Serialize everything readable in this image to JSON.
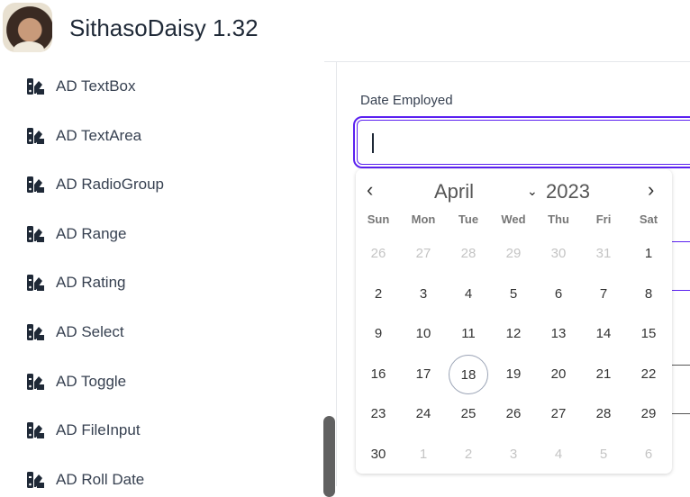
{
  "app": {
    "title": "SithasoDaisy 1.32"
  },
  "sidebar": {
    "items": [
      {
        "label": "AD TextBox"
      },
      {
        "label": "AD TextArea"
      },
      {
        "label": "AD RadioGroup"
      },
      {
        "label": "AD Range"
      },
      {
        "label": "AD Rating"
      },
      {
        "label": "AD Select"
      },
      {
        "label": "AD Toggle"
      },
      {
        "label": "AD FileInput"
      },
      {
        "label": "AD Roll Date"
      }
    ]
  },
  "form": {
    "date_label": "Date Employed",
    "date_value": ""
  },
  "colors": {
    "accent": "#5b21f0"
  },
  "calendar": {
    "month": "April",
    "year": "2023",
    "prev_icon": "chevron-left-icon",
    "next_icon": "chevron-right-icon",
    "today": "18",
    "day_names": [
      "Sun",
      "Mon",
      "Tue",
      "Wed",
      "Thu",
      "Fri",
      "Sat"
    ],
    "weeks": [
      [
        {
          "d": "26",
          "o": true
        },
        {
          "d": "27",
          "o": true
        },
        {
          "d": "28",
          "o": true
        },
        {
          "d": "29",
          "o": true
        },
        {
          "d": "30",
          "o": true
        },
        {
          "d": "31",
          "o": true
        },
        {
          "d": "1"
        }
      ],
      [
        {
          "d": "2"
        },
        {
          "d": "3"
        },
        {
          "d": "4"
        },
        {
          "d": "5"
        },
        {
          "d": "6"
        },
        {
          "d": "7"
        },
        {
          "d": "8"
        }
      ],
      [
        {
          "d": "9"
        },
        {
          "d": "10"
        },
        {
          "d": "11"
        },
        {
          "d": "12"
        },
        {
          "d": "13"
        },
        {
          "d": "14"
        },
        {
          "d": "15"
        }
      ],
      [
        {
          "d": "16"
        },
        {
          "d": "17"
        },
        {
          "d": "18"
        },
        {
          "d": "19"
        },
        {
          "d": "20"
        },
        {
          "d": "21"
        },
        {
          "d": "22"
        }
      ],
      [
        {
          "d": "23"
        },
        {
          "d": "24"
        },
        {
          "d": "25"
        },
        {
          "d": "26"
        },
        {
          "d": "27"
        },
        {
          "d": "28"
        },
        {
          "d": "29"
        }
      ],
      [
        {
          "d": "30"
        },
        {
          "d": "1",
          "o": true
        },
        {
          "d": "2",
          "o": true
        },
        {
          "d": "3",
          "o": true
        },
        {
          "d": "4",
          "o": true
        },
        {
          "d": "5",
          "o": true
        },
        {
          "d": "6",
          "o": true
        }
      ]
    ]
  }
}
